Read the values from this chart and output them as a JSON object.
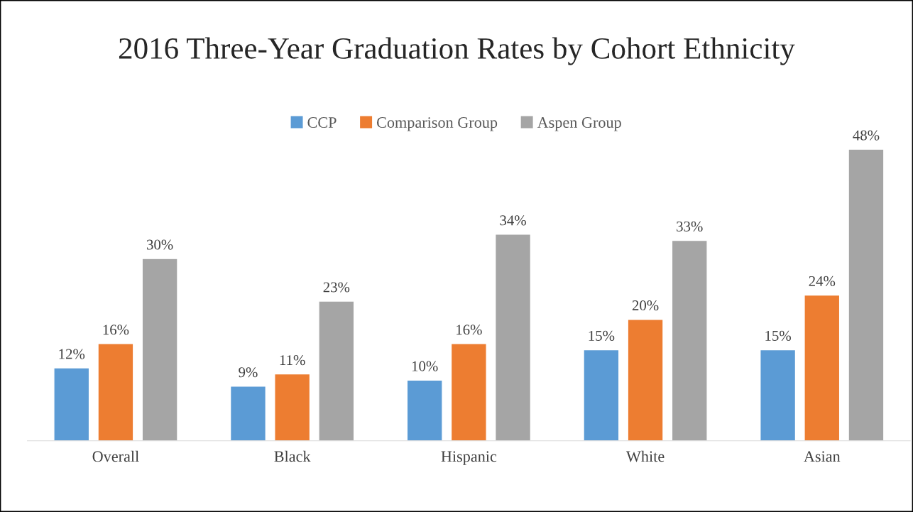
{
  "chart_data": {
    "type": "bar",
    "title": "2016 Three-Year Graduation Rates by Cohort Ethnicity",
    "categories": [
      "Overall",
      "Black",
      "Hispanic",
      "White",
      "Asian"
    ],
    "series": [
      {
        "name": "CCP",
        "color": "#5b9bd5",
        "values": [
          12,
          9,
          10,
          15,
          15
        ],
        "value_labels": [
          "12%",
          "9%",
          "10%",
          "15%",
          "15%"
        ]
      },
      {
        "name": "Comparison Group",
        "color": "#ed7d31",
        "values": [
          16,
          11,
          16,
          20,
          24
        ],
        "value_labels": [
          "16%",
          "11%",
          "16%",
          "20%",
          "24%"
        ]
      },
      {
        "name": "Aspen Group",
        "color": "#a5a5a5",
        "values": [
          30,
          23,
          34,
          33,
          48
        ],
        "value_labels": [
          "30%",
          "23%",
          "34%",
          "33%",
          "48%"
        ]
      }
    ],
    "legend": "top",
    "grid": false
  }
}
